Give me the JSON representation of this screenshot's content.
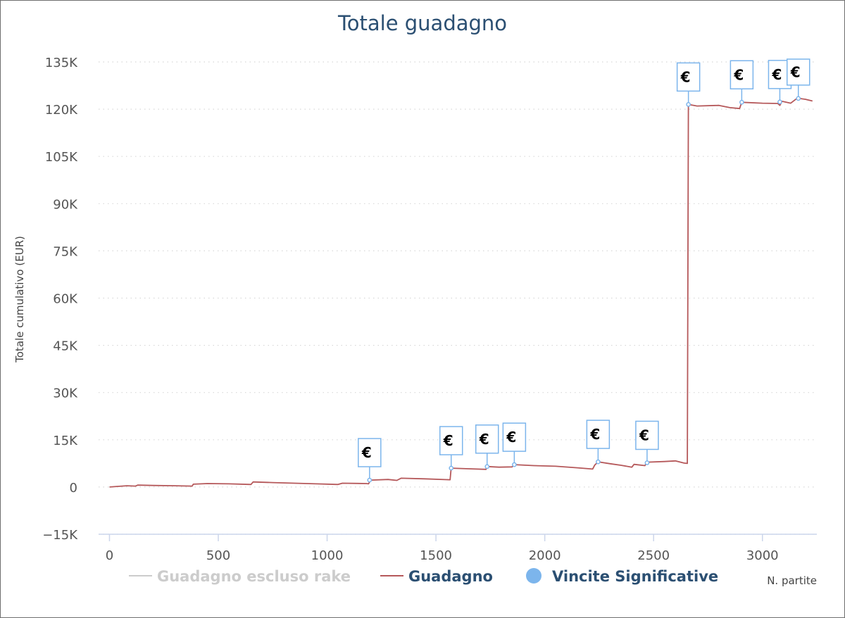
{
  "chart_data": {
    "type": "line",
    "title": "Totale guadagno",
    "ylabel": "Totale cumulativo (EUR)",
    "xlabel": "N. partite",
    "xlim": [
      -50,
      3250
    ],
    "ylim": [
      -15000,
      135000
    ],
    "x_ticks": [
      0,
      500,
      1000,
      1500,
      2000,
      2500,
      3000
    ],
    "x_tick_labels": [
      "0",
      "500",
      "1000",
      "1500",
      "2000",
      "2500",
      "3000"
    ],
    "y_ticks": [
      -15000,
      0,
      15000,
      30000,
      45000,
      60000,
      75000,
      90000,
      105000,
      120000,
      135000
    ],
    "y_tick_labels": [
      "−15K",
      "0",
      "15K",
      "30K",
      "45K",
      "60K",
      "75K",
      "90K",
      "105K",
      "120K",
      "135K"
    ],
    "grid": "horizontal-dotted",
    "legend_position": "bottom",
    "series": [
      {
        "name": "Guadagno escluso rake",
        "color": "#cccccc",
        "visible": false,
        "points": []
      },
      {
        "name": "Guadagno",
        "color": "#b5585a",
        "visible": true,
        "points": [
          [
            0,
            0
          ],
          [
            40,
            200
          ],
          [
            80,
            400
          ],
          [
            120,
            300
          ],
          [
            130,
            600
          ],
          [
            200,
            500
          ],
          [
            300,
            400
          ],
          [
            380,
            300
          ],
          [
            385,
            900
          ],
          [
            450,
            1100
          ],
          [
            550,
            1000
          ],
          [
            650,
            800
          ],
          [
            660,
            1600
          ],
          [
            750,
            1400
          ],
          [
            850,
            1200
          ],
          [
            950,
            1000
          ],
          [
            1050,
            800
          ],
          [
            1070,
            1200
          ],
          [
            1180,
            1100
          ],
          [
            1190,
            1000
          ],
          [
            1200,
            2200
          ],
          [
            1280,
            2400
          ],
          [
            1320,
            2100
          ],
          [
            1340,
            2800
          ],
          [
            1450,
            2600
          ],
          [
            1565,
            2300
          ],
          [
            1570,
            6000
          ],
          [
            1650,
            5800
          ],
          [
            1730,
            5600
          ],
          [
            1735,
            6500
          ],
          [
            1790,
            6300
          ],
          [
            1850,
            6400
          ],
          [
            1860,
            7100
          ],
          [
            1950,
            6800
          ],
          [
            2050,
            6600
          ],
          [
            2150,
            6100
          ],
          [
            2220,
            5700
          ],
          [
            2230,
            7000
          ],
          [
            2245,
            8000
          ],
          [
            2300,
            7400
          ],
          [
            2350,
            6900
          ],
          [
            2400,
            6300
          ],
          [
            2410,
            7200
          ],
          [
            2460,
            6800
          ],
          [
            2470,
            7900
          ],
          [
            2550,
            8100
          ],
          [
            2600,
            8300
          ],
          [
            2640,
            7600
          ],
          [
            2655,
            7500
          ],
          [
            2660,
            121500
          ],
          [
            2700,
            121000
          ],
          [
            2800,
            121200
          ],
          [
            2850,
            120500
          ],
          [
            2895,
            120200
          ],
          [
            2905,
            122200
          ],
          [
            3000,
            121900
          ],
          [
            3070,
            121800
          ],
          [
            3080,
            121200
          ],
          [
            3090,
            122500
          ],
          [
            3130,
            121900
          ],
          [
            3160,
            123500
          ],
          [
            3200,
            123100
          ],
          [
            3230,
            122600
          ]
        ]
      }
    ],
    "significant_wins": {
      "name": "Vincite Significative",
      "color": "#7cb5ec",
      "symbol": "€",
      "points": [
        [
          1195,
          2200
        ],
        [
          1570,
          6000
        ],
        [
          1735,
          6500
        ],
        [
          1860,
          7100
        ],
        [
          2245,
          8000
        ],
        [
          2470,
          7700
        ],
        [
          2660,
          121500
        ],
        [
          2905,
          122200
        ],
        [
          3080,
          122300
        ],
        [
          3165,
          123400
        ]
      ]
    }
  }
}
